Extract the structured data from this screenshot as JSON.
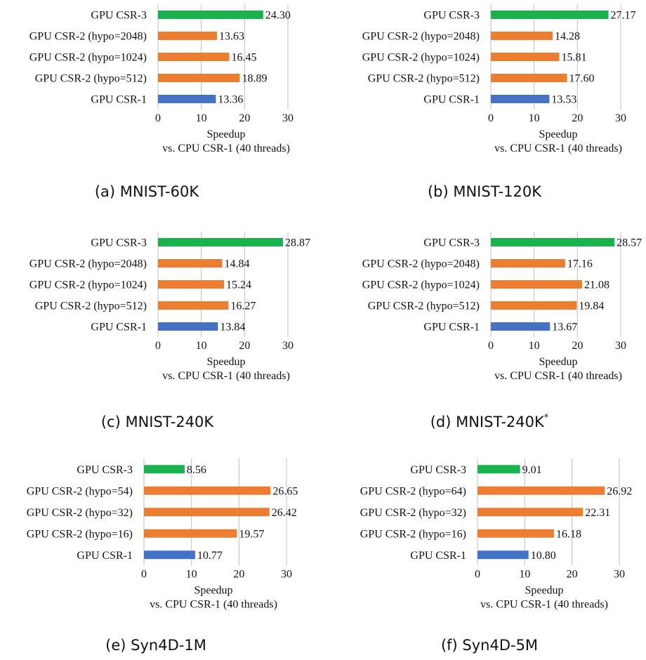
{
  "colors": {
    "csr3": "#1ab14f",
    "csr2": "#ed7d31",
    "csr1": "#4472c4",
    "grid": "#c0c0c0"
  },
  "chart_data": [
    {
      "type": "bar",
      "orientation": "horizontal",
      "caption": "(a) MNIST-60K",
      "caption_sup": "",
      "xlabel": "Speedup",
      "xlabel2": "vs. CPU CSR-1 (40 threads)",
      "xlim": [
        0,
        30
      ],
      "xticks": [
        0,
        10,
        20,
        30
      ],
      "grid": true,
      "categories": [
        "GPU CSR-3",
        "GPU CSR-2 (hypo=2048)",
        "GPU CSR-2 (hypo=1024)",
        "GPU CSR-2 (hypo=512)",
        "GPU CSR-1"
      ],
      "values": [
        24.3,
        13.63,
        16.45,
        18.89,
        13.36
      ],
      "value_labels": [
        "24.30",
        "13.63",
        "16.45",
        "18.89",
        "13.36"
      ],
      "bar_colors": [
        "csr3",
        "csr2",
        "csr2",
        "csr2",
        "csr1"
      ]
    },
    {
      "type": "bar",
      "orientation": "horizontal",
      "caption": "(b) MNIST-120K",
      "caption_sup": "",
      "xlabel": "Speedup",
      "xlabel2": "vs. CPU CSR-1 (40 threads)",
      "xlim": [
        0,
        30
      ],
      "xticks": [
        0,
        10,
        20,
        30
      ],
      "grid": true,
      "categories": [
        "GPU CSR-3",
        "GPU CSR-2 (hypo=2048)",
        "GPU CSR-2 (hypo=1024)",
        "GPU CSR-2 (hypo=512)",
        "GPU CSR-1"
      ],
      "values": [
        27.17,
        14.28,
        15.81,
        17.6,
        13.53
      ],
      "value_labels": [
        "27.17",
        "14.28",
        "15.81",
        "17.60",
        "13.53"
      ],
      "bar_colors": [
        "csr3",
        "csr2",
        "csr2",
        "csr2",
        "csr1"
      ]
    },
    {
      "type": "bar",
      "orientation": "horizontal",
      "caption": "(c) MNIST-240K",
      "caption_sup": "",
      "xlabel": "Speedup",
      "xlabel2": "vs. CPU CSR-1 (40 threads)",
      "xlim": [
        0,
        30
      ],
      "xticks": [
        0,
        10,
        20,
        30
      ],
      "grid": true,
      "categories": [
        "GPU CSR-3",
        "GPU CSR-2 (hypo=2048)",
        "GPU CSR-2 (hypo=1024)",
        "GPU CSR-2 (hypo=512)",
        "GPU CSR-1"
      ],
      "values": [
        28.87,
        14.84,
        15.24,
        16.27,
        13.84
      ],
      "value_labels": [
        "28.87",
        "14.84",
        "15.24",
        "16.27",
        "13.84"
      ],
      "bar_colors": [
        "csr3",
        "csr2",
        "csr2",
        "csr2",
        "csr1"
      ]
    },
    {
      "type": "bar",
      "orientation": "horizontal",
      "caption": "(d) MNIST-240K",
      "caption_sup": "*",
      "xlabel": "Speedup",
      "xlabel2": "vs. CPU CSR-1 (40 threads)",
      "xlim": [
        0,
        30
      ],
      "xticks": [
        0,
        10,
        20,
        30
      ],
      "grid": true,
      "categories": [
        "GPU CSR-3",
        "GPU CSR-2 (hypo=2048)",
        "GPU CSR-2 (hypo=1024)",
        "GPU CSR-2 (hypo=512)",
        "GPU CSR-1"
      ],
      "values": [
        28.57,
        17.16,
        21.08,
        19.84,
        13.67
      ],
      "value_labels": [
        "28.57",
        "17.16",
        "21.08",
        "19.84",
        "13.67"
      ],
      "bar_colors": [
        "csr3",
        "csr2",
        "csr2",
        "csr2",
        "csr1"
      ]
    },
    {
      "type": "bar",
      "orientation": "horizontal",
      "caption": "(e) Syn4D-1M",
      "caption_sup": "",
      "xlabel": "Speedup",
      "xlabel2": "vs. CPU CSR-1 (40 threads)",
      "xlim": [
        0,
        30
      ],
      "xticks": [
        0,
        10,
        20,
        30
      ],
      "grid": true,
      "categories": [
        "GPU CSR-3",
        "GPU CSR-2 (hypo=54)",
        "GPU CSR-2 (hypo=32)",
        "GPU CSR-2 (hypo=16)",
        "GPU CSR-1"
      ],
      "values": [
        8.56,
        26.65,
        26.42,
        19.57,
        10.77
      ],
      "value_labels": [
        "8.56",
        "26.65",
        "26.42",
        "19.57",
        "10.77"
      ],
      "bar_colors": [
        "csr3",
        "csr2",
        "csr2",
        "csr2",
        "csr1"
      ]
    },
    {
      "type": "bar",
      "orientation": "horizontal",
      "caption": "(f) Syn4D-5M",
      "caption_sup": "",
      "xlabel": "Speedup",
      "xlabel2": "vs. CPU CSR-1 (40 threads)",
      "xlim": [
        0,
        30
      ],
      "xticks": [
        0,
        10,
        20,
        30
      ],
      "grid": true,
      "categories": [
        "GPU CSR-3",
        "GPU CSR-2 (hypo=64)",
        "GPU CSR-2 (hypo=32)",
        "GPU CSR-2 (hypo=16)",
        "GPU CSR-1"
      ],
      "values": [
        9.01,
        26.92,
        22.31,
        16.18,
        10.8
      ],
      "value_labels": [
        "9.01",
        "26.92",
        "22.31",
        "16.18",
        "10.80"
      ],
      "bar_colors": [
        "csr3",
        "csr2",
        "csr2",
        "csr2",
        "csr1"
      ]
    }
  ]
}
